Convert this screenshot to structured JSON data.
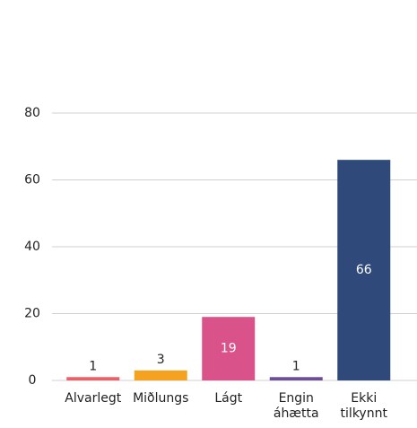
{
  "chart_data": {
    "type": "bar",
    "categories": [
      "Alvarlegt",
      "Miðlungs",
      "Lágt",
      "Engin áhætta",
      "Ekki tilkynnt"
    ],
    "values": [
      1,
      3,
      19,
      1,
      66
    ],
    "colors": [
      "#ea5f68",
      "#f4a21f",
      "#d9528a",
      "#6b4e97",
      "#2f4a7a"
    ],
    "ylim": [
      0,
      80
    ],
    "yticks": [
      0,
      20,
      40,
      60,
      80
    ],
    "grid": true
  }
}
